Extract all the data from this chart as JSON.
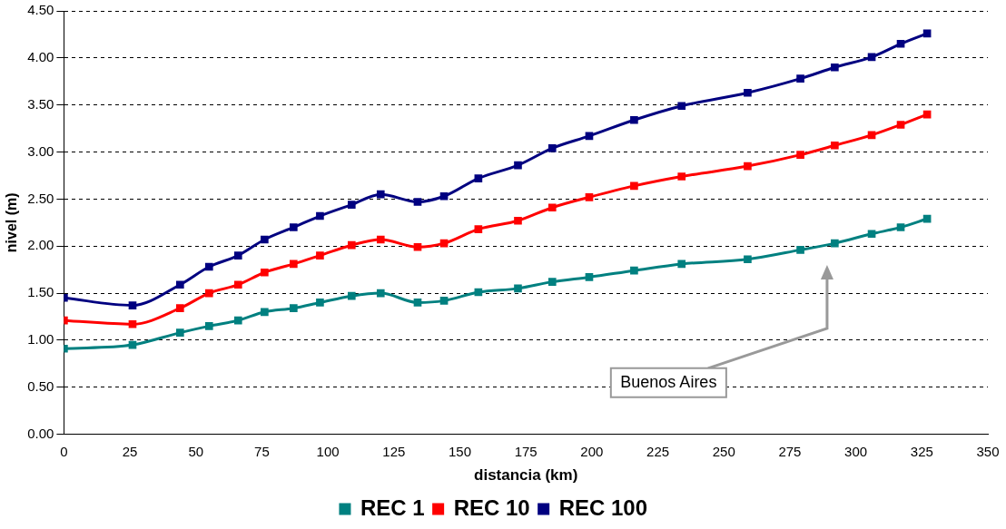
{
  "chart_data": {
    "type": "line",
    "xlabel": "distancia (km)",
    "ylabel": "nivel (m)",
    "x": [
      0,
      26,
      44,
      55,
      66,
      76,
      87,
      97,
      109,
      120,
      134,
      144,
      157,
      172,
      185,
      199,
      216,
      234,
      259,
      279,
      292,
      306,
      317,
      327
    ],
    "series": [
      {
        "name": "REC 1",
        "color": "#008080",
        "values": [
          0.91,
          0.95,
          1.08,
          1.15,
          1.21,
          1.3,
          1.34,
          1.4,
          1.47,
          1.5,
          1.4,
          1.42,
          1.51,
          1.55,
          1.62,
          1.67,
          1.74,
          1.81,
          1.86,
          1.96,
          2.03,
          2.13,
          2.2,
          2.29
        ]
      },
      {
        "name": "REC 10",
        "color": "#ff0000",
        "values": [
          1.21,
          1.17,
          1.34,
          1.5,
          1.59,
          1.72,
          1.81,
          1.9,
          2.01,
          2.07,
          1.99,
          2.03,
          2.18,
          2.27,
          2.41,
          2.52,
          2.64,
          2.74,
          2.85,
          2.97,
          3.07,
          3.18,
          3.29,
          3.4
        ]
      },
      {
        "name": "REC 100",
        "color": "#000080",
        "values": [
          1.45,
          1.37,
          1.59,
          1.78,
          1.9,
          2.07,
          2.2,
          2.32,
          2.44,
          2.55,
          2.47,
          2.53,
          2.72,
          2.86,
          3.04,
          3.17,
          3.34,
          3.49,
          3.63,
          3.78,
          3.9,
          4.01,
          4.15,
          4.26
        ]
      }
    ],
    "xlim": [
      0,
      350
    ],
    "xticks": [
      0,
      25,
      50,
      75,
      100,
      125,
      150,
      175,
      200,
      225,
      250,
      275,
      300,
      325,
      350
    ],
    "ylim": [
      0,
      4.5
    ],
    "yticks": [
      {
        "value": 0,
        "label": "0.00"
      },
      {
        "value": 0.5,
        "label": "0.50"
      },
      {
        "value": 1,
        "label": "1.00"
      },
      {
        "value": 1.5,
        "label": "1.50"
      },
      {
        "value": 2,
        "label": "2.00"
      },
      {
        "value": 2.5,
        "label": "2.50"
      },
      {
        "value": 3,
        "label": "3.00"
      },
      {
        "value": 3.5,
        "label": "3.50"
      },
      {
        "value": 4,
        "label": "4.00"
      },
      {
        "value": 4.5,
        "label": "4.50"
      }
    ],
    "grid": "y",
    "legend": "bottom",
    "marker": "square",
    "line_style": "solid",
    "annotations": [
      "Buenos Aires"
    ]
  }
}
